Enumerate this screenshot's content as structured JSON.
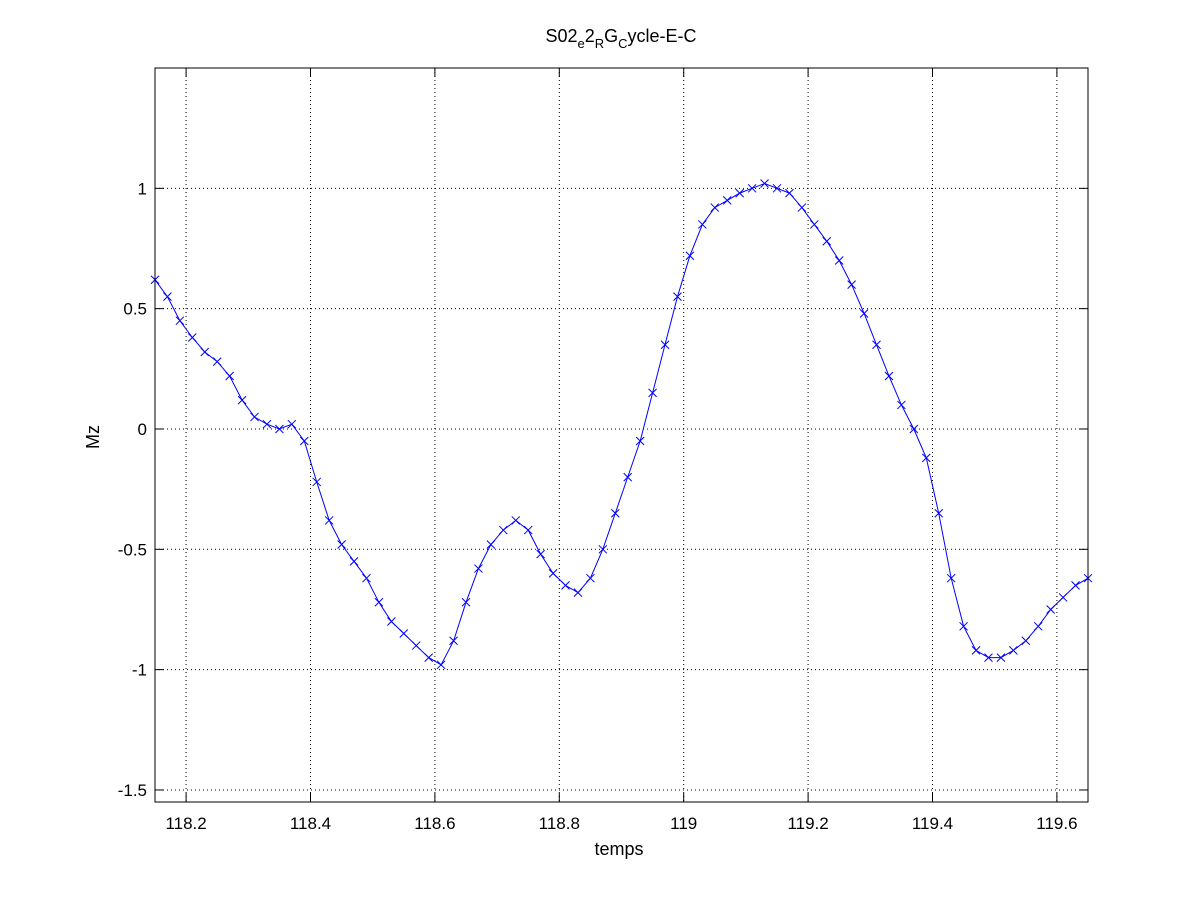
{
  "chart_data": {
    "type": "line",
    "title": {
      "parts": [
        {
          "text": "S02",
          "sub": false
        },
        {
          "text": "e",
          "sub": true
        },
        {
          "text": "2",
          "sub": false
        },
        {
          "text": "R",
          "sub": true
        },
        {
          "text": "G",
          "sub": false
        },
        {
          "text": "C",
          "sub": true
        },
        {
          "text": "ycle-E-C",
          "sub": false
        }
      ]
    },
    "xlabel": "temps",
    "ylabel": "Mz",
    "xlim": [
      118.15,
      119.65
    ],
    "ylim": [
      -1.55,
      1.5
    ],
    "grid": true,
    "marker": "x",
    "series_color": "#0000ff",
    "xticks": [
      {
        "value": 118.2,
        "label": "118.2"
      },
      {
        "value": 118.4,
        "label": "118.4"
      },
      {
        "value": 118.6,
        "label": "118.6"
      },
      {
        "value": 118.8,
        "label": "118.8"
      },
      {
        "value": 119.0,
        "label": "119"
      },
      {
        "value": 119.2,
        "label": "119.2"
      },
      {
        "value": 119.4,
        "label": "119.4"
      },
      {
        "value": 119.6,
        "label": "119.6"
      }
    ],
    "yticks": [
      {
        "value": -1.5,
        "label": "-1.5"
      },
      {
        "value": -1.0,
        "label": "-1"
      },
      {
        "value": -0.5,
        "label": "-0.5"
      },
      {
        "value": 0.0,
        "label": "0"
      },
      {
        "value": 0.5,
        "label": "0.5"
      },
      {
        "value": 1.0,
        "label": "1"
      }
    ],
    "series": [
      {
        "x": [
          118.15,
          118.17,
          118.19,
          118.21,
          118.23,
          118.25,
          118.27,
          118.29,
          118.31,
          118.33,
          118.35,
          118.37,
          118.39,
          118.41,
          118.43,
          118.45,
          118.47,
          118.49,
          118.51,
          118.53,
          118.55,
          118.57,
          118.59,
          118.61,
          118.63,
          118.65,
          118.67,
          118.69,
          118.71,
          118.73,
          118.75,
          118.77,
          118.79,
          118.81,
          118.83,
          118.85,
          118.87,
          118.89,
          118.91,
          118.93,
          118.95,
          118.97,
          118.99,
          119.01,
          119.03,
          119.05,
          119.07,
          119.09,
          119.11,
          119.13,
          119.15,
          119.17,
          119.19,
          119.21,
          119.23,
          119.25,
          119.27,
          119.29,
          119.31,
          119.33,
          119.35,
          119.37,
          119.39,
          119.41,
          119.43,
          119.45,
          119.47,
          119.49,
          119.51,
          119.53,
          119.55,
          119.57,
          119.59,
          119.61,
          119.63,
          119.65
        ],
        "y": [
          0.62,
          0.55,
          0.45,
          0.38,
          0.32,
          0.28,
          0.22,
          0.12,
          0.05,
          0.02,
          0.0,
          0.02,
          -0.05,
          -0.22,
          -0.38,
          -0.48,
          -0.55,
          -0.62,
          -0.72,
          -0.8,
          -0.85,
          -0.9,
          -0.95,
          -0.98,
          -0.88,
          -0.72,
          -0.58,
          -0.48,
          -0.42,
          -0.38,
          -0.42,
          -0.52,
          -0.6,
          -0.65,
          -0.68,
          -0.62,
          -0.5,
          -0.35,
          -0.2,
          -0.05,
          0.15,
          0.35,
          0.55,
          0.72,
          0.85,
          0.92,
          0.95,
          0.98,
          1.0,
          1.02,
          1.0,
          0.98,
          0.92,
          0.85,
          0.78,
          0.7,
          0.6,
          0.48,
          0.35,
          0.22,
          0.1,
          0.0,
          -0.12,
          -0.35,
          -0.62,
          -0.82,
          -0.92,
          -0.95,
          -0.95,
          -0.92,
          -0.88,
          -0.82,
          -0.75,
          -0.7,
          -0.65,
          -0.62
        ]
      }
    ]
  }
}
